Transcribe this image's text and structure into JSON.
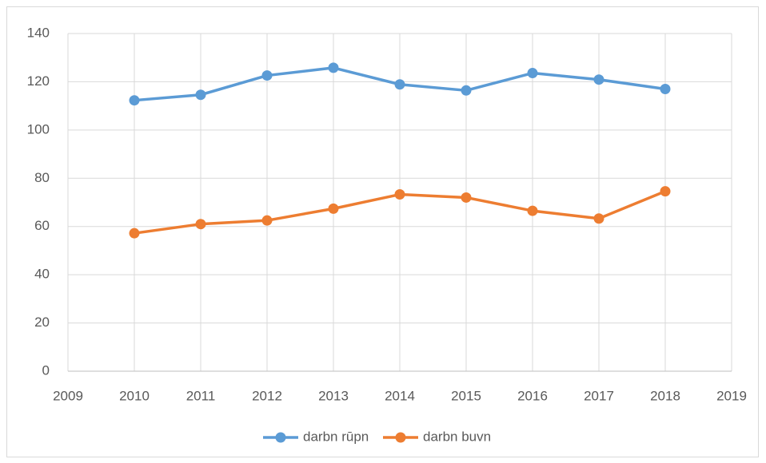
{
  "chart_data": {
    "type": "line",
    "x": [
      2010,
      2011,
      2012,
      2013,
      2014,
      2015,
      2016,
      2017,
      2018
    ],
    "series": [
      {
        "name": "darbn rūpn",
        "color": "#5b9bd5",
        "values": [
          112.3,
          114.6,
          122.6,
          125.8,
          118.9,
          116.4,
          123.6,
          120.9,
          117.0
        ]
      },
      {
        "name": "darbn buvn",
        "color": "#ed7d31",
        "values": [
          57.2,
          61.0,
          62.5,
          67.4,
          73.3,
          72.0,
          66.5,
          63.3,
          74.6
        ]
      }
    ],
    "xlim": [
      2009,
      2019
    ],
    "xticks": [
      2009,
      2010,
      2011,
      2012,
      2013,
      2014,
      2015,
      2016,
      2017,
      2018,
      2019
    ],
    "ylim": [
      0,
      140
    ],
    "yticks": [
      0,
      20,
      40,
      60,
      80,
      100,
      120,
      140
    ],
    "grid": true,
    "legend": "bottom"
  }
}
